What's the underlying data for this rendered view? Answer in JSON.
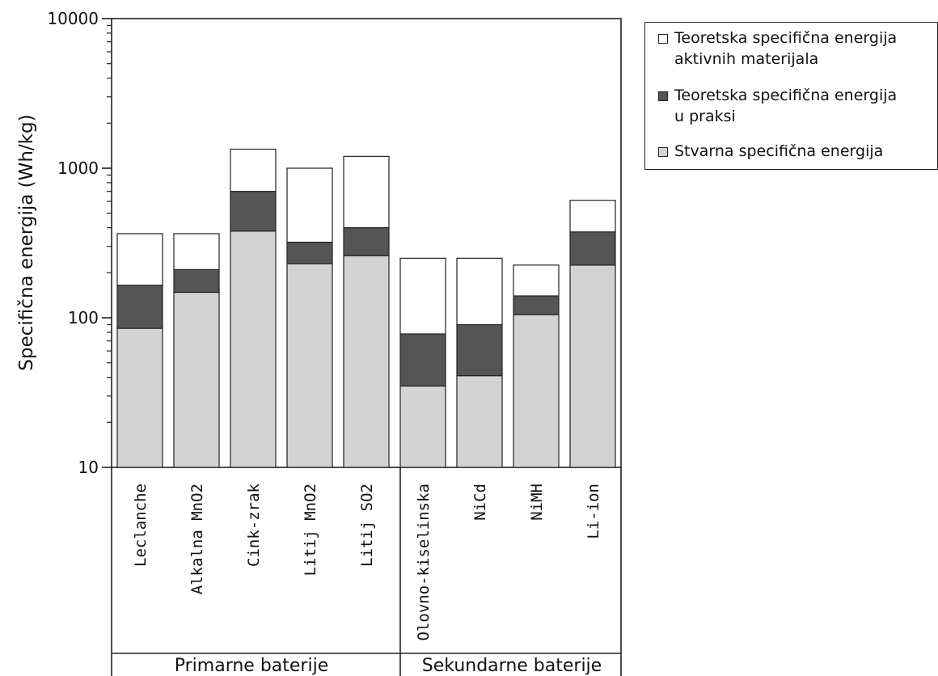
{
  "chart_data": {
    "type": "bar",
    "stacked": true,
    "title": "",
    "ylabel": "Specifična energija (Wh/kg)",
    "yscale": "log",
    "ylim": [
      10,
      10000
    ],
    "yticks": [
      "10",
      "100",
      "1000",
      "10000"
    ],
    "categories": [
      "Leclanche",
      "Alkalna MnO2",
      "Cink-zrak",
      "Litij MnO2",
      "Litij SO2",
      "Olovno-kiselinska",
      "NiCd",
      "NiMH",
      "Li-ion"
    ],
    "groups": [
      {
        "label": "Primarne baterije",
        "categories": [
          "Leclanche",
          "Alkalna MnO2",
          "Cink-zrak",
          "Litij MnO2",
          "Litij SO2"
        ]
      },
      {
        "label": "Sekundarne baterije",
        "categories": [
          "Olovno-kiselinska",
          "NiCd",
          "NiMH",
          "Li-ion"
        ]
      }
    ],
    "series": [
      {
        "name": "Stvarna specifična energija",
        "color": "#d3d3d3",
        "values": [
          85,
          148,
          380,
          230,
          260,
          35,
          41,
          105,
          225
        ]
      },
      {
        "name": "Teoretska specifična energija u praksi",
        "color": "#555555",
        "values": [
          165,
          210,
          700,
          320,
          400,
          78,
          90,
          140,
          375
        ]
      },
      {
        "name": "Teoretska specifična energija aktivnih materijala",
        "color": "#ffffff",
        "values": [
          365,
          365,
          1340,
          1000,
          1200,
          250,
          250,
          225,
          610
        ]
      }
    ],
    "grid": false,
    "legend_position": "top-right"
  },
  "legend": {
    "items": [
      {
        "label": "Teoretska specifična energija\naktivnih materijala",
        "color": "#ffffff"
      },
      {
        "label": "Teoretska specifična energija\nu praksi",
        "color": "#555555"
      },
      {
        "label": "Stvarna specifična energija",
        "color": "#d3d3d3"
      }
    ]
  }
}
